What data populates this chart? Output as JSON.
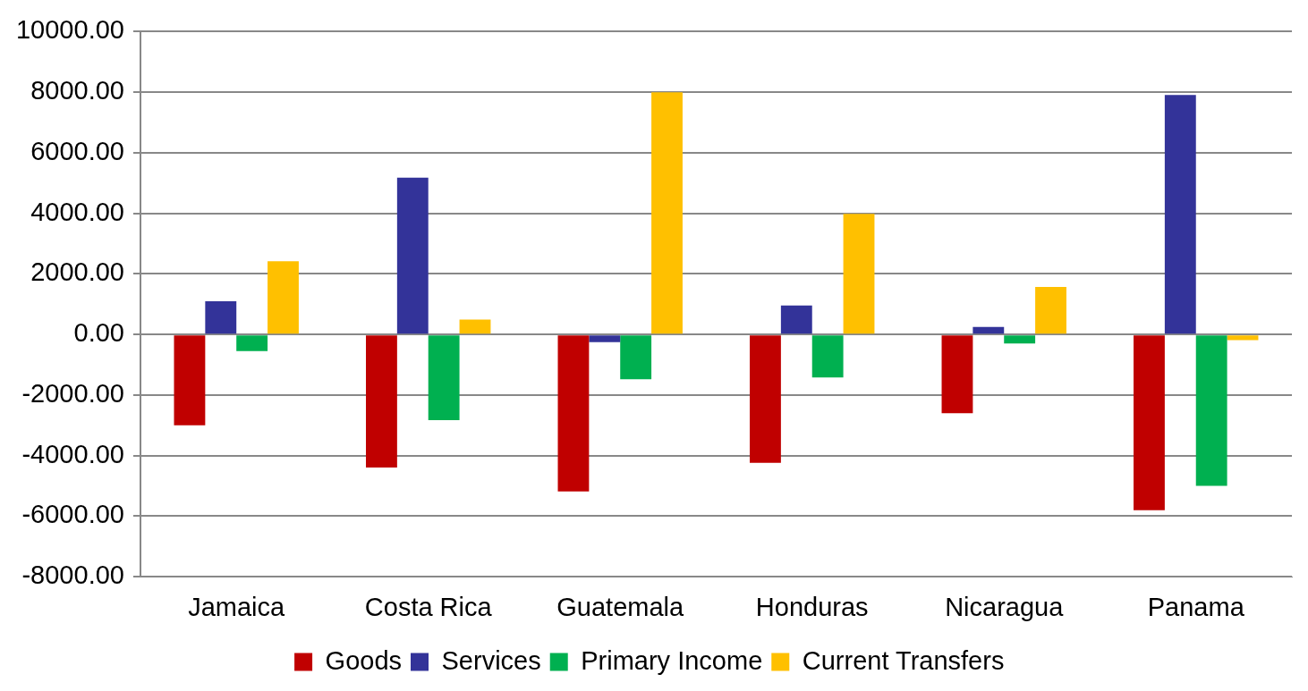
{
  "chart_data": {
    "type": "bar",
    "categories": [
      "Jamaica",
      "Costa Rica",
      "Guatemala",
      "Honduras",
      "Nicaragua",
      "Panama"
    ],
    "series": [
      {
        "name": "Goods",
        "color": "#c00000",
        "values": [
          -3000,
          -4390,
          -5180,
          -4240,
          -2600,
          -5800
        ]
      },
      {
        "name": "Services",
        "color": "#333399",
        "values": [
          1100,
          5180,
          -250,
          960,
          250,
          7910
        ]
      },
      {
        "name": "Primary Income",
        "color": "#00b050",
        "values": [
          -550,
          -2830,
          -1480,
          -1420,
          -300,
          -5000
        ]
      },
      {
        "name": "Current Transfers",
        "color": "#ffc000",
        "values": [
          2420,
          490,
          8000,
          3980,
          1570,
          -190
        ]
      }
    ],
    "ylim": [
      -8000,
      10000
    ],
    "yticks": [
      {
        "value": -8000,
        "label": "-8000.00"
      },
      {
        "value": -6000,
        "label": "-6000.00"
      },
      {
        "value": -4000,
        "label": "-4000.00"
      },
      {
        "value": -2000,
        "label": "-2000.00"
      },
      {
        "value": 0,
        "label": "0.00"
      },
      {
        "value": 2000,
        "label": "2000.00"
      },
      {
        "value": 4000,
        "label": "4000.00"
      },
      {
        "value": 6000,
        "label": "6000.00"
      },
      {
        "value": 8000,
        "label": "8000.00"
      },
      {
        "value": 10000,
        "label": "10000.00"
      }
    ],
    "grid": "y",
    "legend": "bottom"
  }
}
